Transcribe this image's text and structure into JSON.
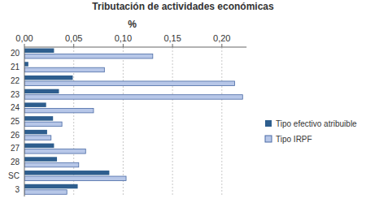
{
  "chart_data": {
    "type": "bar",
    "orientation": "horizontal",
    "title": "Tributación de actividades económicas",
    "x_label": "%",
    "categories": [
      "20",
      "21",
      "22",
      "23",
      "24",
      "25",
      "26",
      "27",
      "28",
      "SC",
      "3"
    ],
    "series": [
      {
        "name": "Tipo efectivo atribuible",
        "color": "#2e5e8e",
        "values": [
          0.03,
          0.004,
          0.049,
          0.035,
          0.022,
          0.029,
          0.023,
          0.03,
          0.033,
          0.086,
          0.054
        ]
      },
      {
        "name": "Tipo IRPF",
        "color": "#b7c7e8",
        "values": [
          0.13,
          0.081,
          0.213,
          0.221,
          0.07,
          0.038,
          0.027,
          0.062,
          0.055,
          0.103,
          0.043
        ]
      }
    ],
    "xlim": [
      0,
      0.225
    ],
    "xticks": [
      {
        "value": 0,
        "label": "0,00"
      },
      {
        "value": 0.05,
        "label": "0,05"
      },
      {
        "value": 0.1,
        "label": "0,10"
      },
      {
        "value": 0.15,
        "label": "0,15"
      },
      {
        "value": 0.2,
        "label": "0,20"
      }
    ],
    "grid": true,
    "legend": "right"
  }
}
